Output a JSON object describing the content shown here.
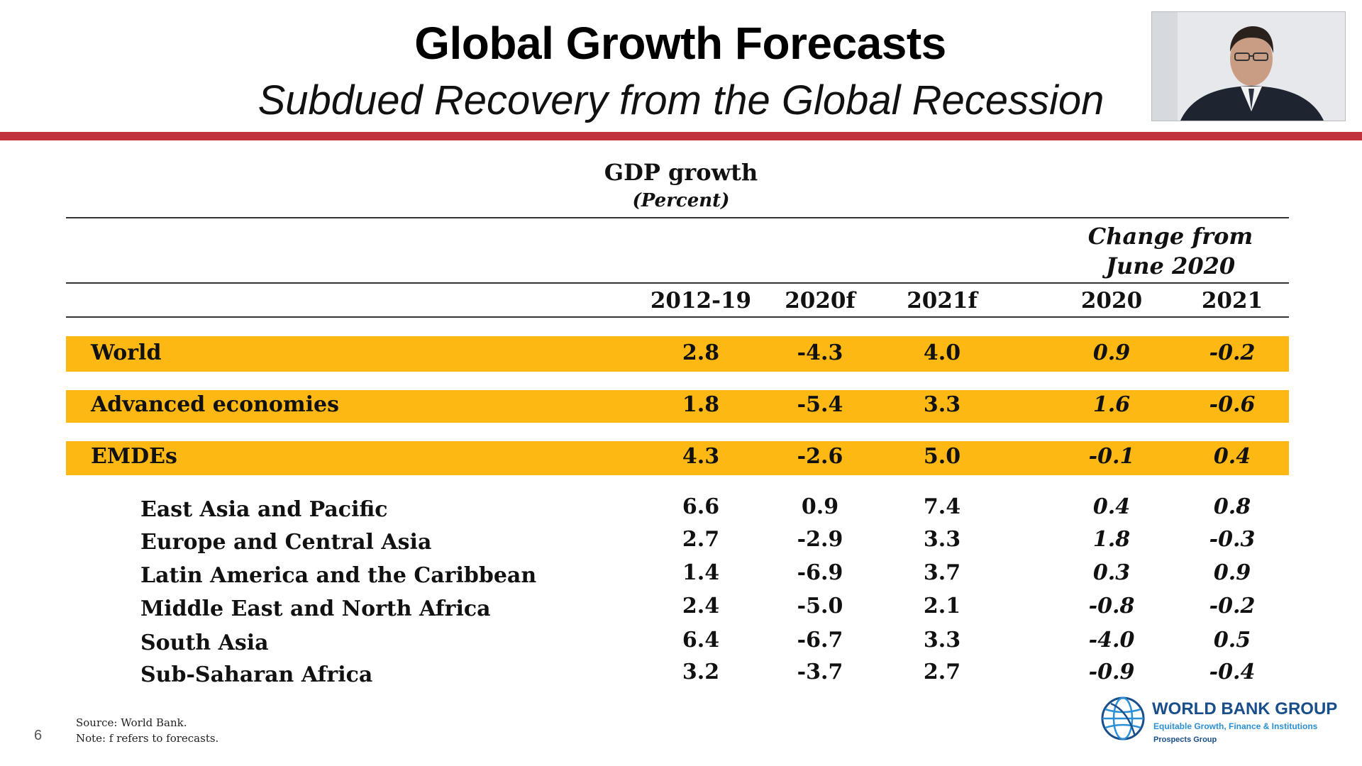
{
  "slide": {
    "title": "Global Growth Forecasts",
    "subtitle": "Subdued Recovery from the Global Recession",
    "page_number": "6"
  },
  "table": {
    "title": "GDP growth",
    "unit": "(Percent)",
    "change_header_line1": "Change from",
    "change_header_line2": "June 2020",
    "columns": [
      "2012-19",
      "2020f",
      "2021f",
      "2020",
      "2021"
    ],
    "highlight_rows": [
      {
        "label": "World",
        "values": [
          "2.8",
          "-4.3",
          "4.0",
          "0.9",
          "-0.2"
        ]
      },
      {
        "label": "Advanced economies",
        "values": [
          "1.8",
          "-5.4",
          "3.3",
          "1.6",
          "-0.6"
        ]
      },
      {
        "label": "EMDEs",
        "values": [
          "4.3",
          "-2.6",
          "5.0",
          "-0.1",
          "0.4"
        ]
      }
    ],
    "region_rows": [
      {
        "label": "East Asia and Pacific",
        "values": [
          "6.6",
          "0.9",
          "7.4",
          "0.4",
          "0.8"
        ]
      },
      {
        "label": "Europe and Central Asia",
        "values": [
          "2.7",
          "-2.9",
          "3.3",
          "1.8",
          "-0.3"
        ]
      },
      {
        "label": "Latin America and the Caribbean",
        "values": [
          "1.4",
          "-6.9",
          "3.7",
          "0.3",
          "0.9"
        ]
      },
      {
        "label": "Middle East and North Africa",
        "values": [
          "2.4",
          "-5.0",
          "2.1",
          "-0.8",
          "-0.2"
        ]
      },
      {
        "label": "South Asia",
        "values": [
          "6.4",
          "-6.7",
          "3.3",
          "-4.0",
          "0.5"
        ]
      },
      {
        "label": "Sub-Saharan Africa",
        "values": [
          "3.2",
          "-3.7",
          "2.7",
          "-0.9",
          "-0.4"
        ]
      }
    ]
  },
  "footnotes": {
    "source": "Source: World Bank.",
    "note": "Note: f refers to forecasts."
  },
  "logo": {
    "name": "WORLD BANK GROUP",
    "tagline": "Equitable Growth, Finance & Institutions",
    "group": "Prospects Group"
  },
  "colors": {
    "accent_red": "#c0333c",
    "highlight_band": "#fdb813",
    "logo_blue": "#1a4e8a"
  }
}
